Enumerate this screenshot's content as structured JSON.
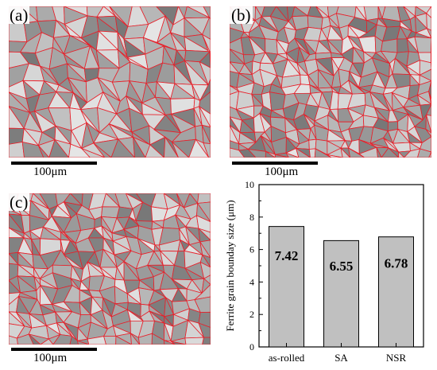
{
  "panels": [
    {
      "label": "(a)",
      "scale": "100μm"
    },
    {
      "label": "(b)",
      "scale": "100μm"
    },
    {
      "label": "(c)",
      "scale": "100μm"
    }
  ],
  "colors": {
    "boundary": "#e8202a",
    "grain_base": "#a6a6a6",
    "bar_fill": "#c0c0c0"
  },
  "chart_data": {
    "type": "bar",
    "categories": [
      "as-rolled",
      "SA",
      "NSR"
    ],
    "values": [
      7.42,
      6.55,
      6.78
    ],
    "data_labels": [
      "7.42",
      "6.55",
      "6.78"
    ],
    "ylabel": "Ferrite grain bounday size (μm)",
    "ylim": [
      0,
      10
    ],
    "yticks": [
      "0",
      "2",
      "4",
      "6",
      "8",
      "10"
    ],
    "grid": false
  }
}
